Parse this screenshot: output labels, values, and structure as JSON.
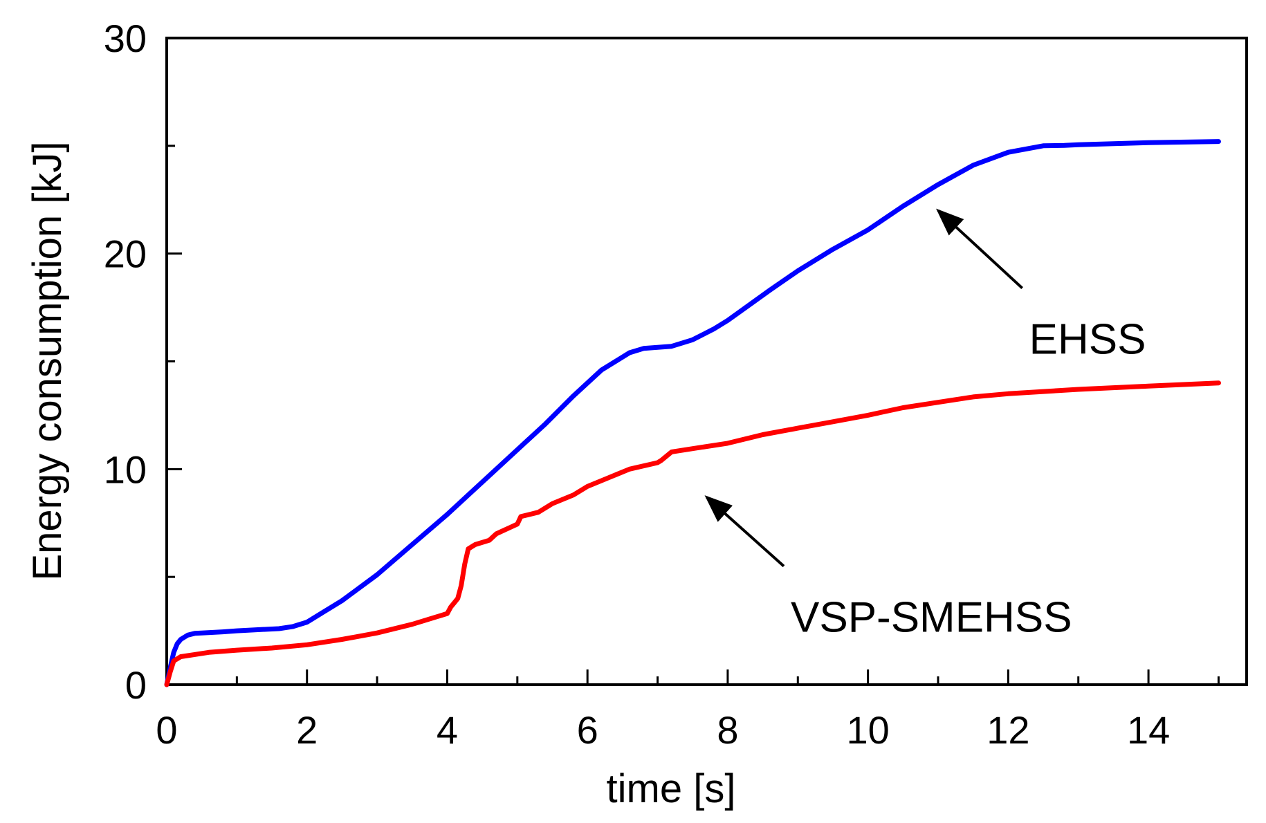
{
  "chart_data": {
    "type": "line",
    "title": "",
    "xlabel": "time [s]",
    "ylabel": "Energy consumption [kJ]",
    "xlim": [
      0,
      15.4
    ],
    "ylim": [
      0,
      30
    ],
    "xticks": [
      0,
      2,
      4,
      6,
      8,
      10,
      12,
      14
    ],
    "xtick_labels": [
      "0",
      "2",
      "4",
      "6",
      "8",
      "10",
      "12",
      "14"
    ],
    "yticks": [
      0,
      10,
      20,
      30
    ],
    "ytick_labels": [
      "0",
      "10",
      "20",
      "30"
    ],
    "x_minor_step": 1,
    "y_minor_step": 5,
    "grid": false,
    "series": [
      {
        "name": "EHSS",
        "color": "#0000ff",
        "x": [
          0,
          0.05,
          0.1,
          0.15,
          0.2,
          0.3,
          0.4,
          0.5,
          0.8,
          1.0,
          1.3,
          1.6,
          1.8,
          2.0,
          2.2,
          2.5,
          3.0,
          3.5,
          4.0,
          4.3,
          4.6,
          5.0,
          5.4,
          5.8,
          6.2,
          6.6,
          6.8,
          7.0,
          7.2,
          7.5,
          7.8,
          8.0,
          8.3,
          8.6,
          9.0,
          9.5,
          10.0,
          10.5,
          11.0,
          11.5,
          12.0,
          12.5,
          12.8,
          13.0,
          14.0,
          15.0
        ],
        "y": [
          0.0,
          0.8,
          1.5,
          1.9,
          2.1,
          2.3,
          2.38,
          2.4,
          2.45,
          2.5,
          2.55,
          2.6,
          2.7,
          2.9,
          3.3,
          3.9,
          5.1,
          6.5,
          7.9,
          8.8,
          9.7,
          10.9,
          12.1,
          13.4,
          14.6,
          15.4,
          15.6,
          15.65,
          15.7,
          16.0,
          16.5,
          16.9,
          17.6,
          18.3,
          19.2,
          20.2,
          21.1,
          22.2,
          23.2,
          24.1,
          24.7,
          25.0,
          25.02,
          25.05,
          25.15,
          25.2
        ]
      },
      {
        "name": "VSP-SMEHSS",
        "color": "#ff0000",
        "x": [
          0,
          0.05,
          0.1,
          0.2,
          0.4,
          0.6,
          1.0,
          1.5,
          2.0,
          2.5,
          3.0,
          3.5,
          3.9,
          4.0,
          4.05,
          4.1,
          4.15,
          4.2,
          4.25,
          4.3,
          4.35,
          4.4,
          4.6,
          4.7,
          4.9,
          5.0,
          5.05,
          5.3,
          5.5,
          5.8,
          6.0,
          6.3,
          6.6,
          7.0,
          7.05,
          7.2,
          7.5,
          8.0,
          8.5,
          9.0,
          9.5,
          10.0,
          10.5,
          11.0,
          11.5,
          12.0,
          13.0,
          14.0,
          15.0
        ],
        "y": [
          0.0,
          0.6,
          1.1,
          1.3,
          1.4,
          1.5,
          1.6,
          1.7,
          1.85,
          2.1,
          2.4,
          2.8,
          3.2,
          3.3,
          3.6,
          3.8,
          4.0,
          4.6,
          5.6,
          6.3,
          6.4,
          6.5,
          6.7,
          7.0,
          7.3,
          7.45,
          7.8,
          8.0,
          8.4,
          8.8,
          9.2,
          9.6,
          10.0,
          10.3,
          10.4,
          10.8,
          10.95,
          11.2,
          11.6,
          11.9,
          12.2,
          12.5,
          12.85,
          13.1,
          13.35,
          13.5,
          13.7,
          13.85,
          14.0
        ]
      }
    ],
    "annotations": [
      {
        "text": "EHSS",
        "target": "EHSS",
        "arrow_tail": [
          12.2,
          18.4
        ],
        "arrow_head": [
          11.0,
          22.0
        ]
      },
      {
        "text": "VSP-SMEHSS",
        "target": "VSP-SMEHSS",
        "arrow_tail": [
          8.8,
          5.5
        ],
        "arrow_head": [
          7.7,
          8.7
        ]
      }
    ]
  }
}
